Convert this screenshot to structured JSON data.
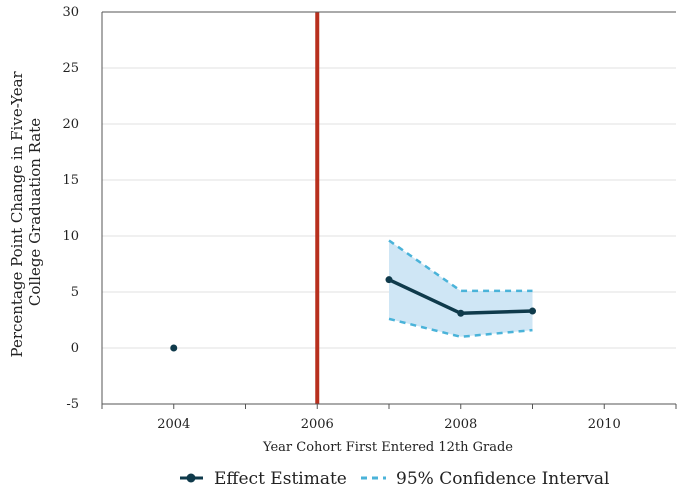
{
  "chart_data": {
    "type": "line",
    "title": "",
    "xlabel": "Year Cohort First Entered 12th Grade",
    "ylabel": [
      "Percentage Point Change in Five-Year",
      "College Graduation Rate"
    ],
    "xlim": [
      2003,
      2011
    ],
    "ylim": [
      -5,
      30
    ],
    "x_ticks": [
      2004,
      2006,
      2008,
      2010
    ],
    "y_ticks": [
      -5,
      0,
      5,
      10,
      15,
      20,
      25,
      30
    ],
    "grid": "horizontal",
    "vertical_marker": {
      "x": 2006,
      "color": "#b8301e"
    },
    "reference_point": {
      "x": 2004,
      "y": 0
    },
    "series": [
      {
        "name": "Effect Estimate",
        "color": "#0f3a4b",
        "x": [
          2007,
          2008,
          2009
        ],
        "values": [
          6.1,
          3.1,
          3.3
        ]
      }
    ],
    "confidence_interval": {
      "name": "95% Confidence Interval",
      "line_color": "#4ab3d9",
      "fill_color": "#cfe6f5",
      "x": [
        2007,
        2008,
        2009
      ],
      "upper": [
        9.6,
        5.1,
        5.1
      ],
      "lower": [
        2.6,
        1.0,
        1.6
      ]
    },
    "legend": {
      "position": "bottom",
      "entries": [
        "Effect Estimate",
        "95% Confidence Interval"
      ]
    }
  }
}
